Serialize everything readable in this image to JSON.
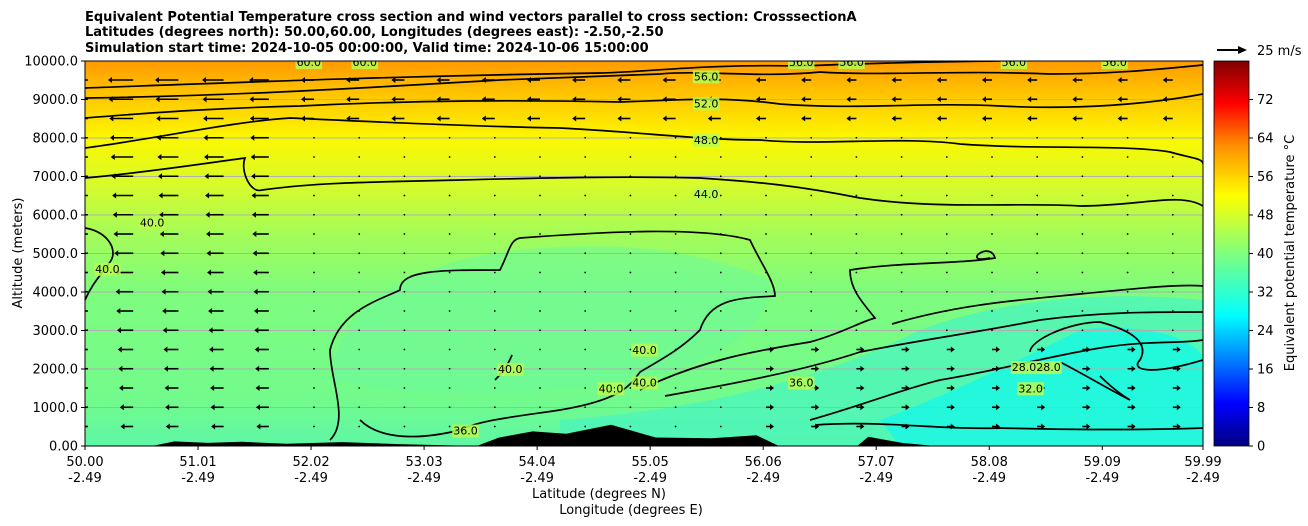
{
  "chart_data": {
    "type": "heatmap",
    "title_lines": [
      "Equivalent Potential Temperature cross section and wind vectors parallel to cross section: CrosssectionA",
      "Latitudes (degrees north): 50.00,60.00, Longitudes (degrees east): -2.50,-2.50",
      "Simulation start time: 2024-10-05 00:00:00, Valid time: 2024-10-06 15:00:00"
    ],
    "ylabel": "Altitude (meters)",
    "xlabel_lines": [
      "Latitude (degrees N)",
      "Longitude (degrees E)"
    ],
    "xlim": [
      50.0,
      59.99
    ],
    "ylim": [
      0,
      10000
    ],
    "x_ticks": [
      {
        "lat": "50.00",
        "lon": "-2.49",
        "value": 50.0
      },
      {
        "lat": "51.01",
        "lon": "-2.49",
        "value": 51.01
      },
      {
        "lat": "52.02",
        "lon": "-2.49",
        "value": 52.02
      },
      {
        "lat": "53.03",
        "lon": "-2.49",
        "value": 53.03
      },
      {
        "lat": "54.04",
        "lon": "-2.49",
        "value": 54.04
      },
      {
        "lat": "55.05",
        "lon": "-2.49",
        "value": 55.05
      },
      {
        "lat": "56.06",
        "lon": "-2.49",
        "value": 56.06
      },
      {
        "lat": "57.07",
        "lon": "-2.49",
        "value": 57.07
      },
      {
        "lat": "58.08",
        "lon": "-2.49",
        "value": 58.08
      },
      {
        "lat": "59.09",
        "lon": "-2.49",
        "value": 59.09
      },
      {
        "lat": "59.99",
        "lon": "-2.49",
        "value": 59.99
      }
    ],
    "y_ticks": [
      {
        "label": "0.00",
        "value": 0
      },
      {
        "label": "1000.0",
        "value": 1000
      },
      {
        "label": "2000.0",
        "value": 2000
      },
      {
        "label": "3000.0",
        "value": 3000
      },
      {
        "label": "4000.0",
        "value": 4000
      },
      {
        "label": "5000.0",
        "value": 5000
      },
      {
        "label": "6000.0",
        "value": 6000
      },
      {
        "label": "7000.0",
        "value": 7000
      },
      {
        "label": "8000.0",
        "value": 8000
      },
      {
        "label": "9000.0",
        "value": 9000
      },
      {
        "label": "10000.0",
        "value": 10000
      }
    ],
    "grid": "horizontal",
    "colorbar": {
      "label": "Equivalent potential temperature °C",
      "range": [
        0,
        80
      ],
      "ticks": [
        "0",
        "8",
        "16",
        "24",
        "32",
        "40",
        "48",
        "56",
        "64",
        "72"
      ],
      "tick_values": [
        0,
        8,
        16,
        24,
        32,
        40,
        48,
        56,
        64,
        72
      ],
      "colormap": "jet"
    },
    "quiver_key": {
      "label": "25 m/s",
      "speed": 25
    },
    "contour_labels": [
      {
        "text": "56.0",
        "lat": 55.55,
        "alt": 9600
      },
      {
        "text": "52.0",
        "lat": 55.55,
        "alt": 8900
      },
      {
        "text": "48.0",
        "lat": 55.55,
        "alt": 7950
      },
      {
        "text": "44.0",
        "lat": 55.55,
        "alt": 6550
      },
      {
        "text": "40.0",
        "lat": 50.6,
        "alt": 5800
      },
      {
        "text": "40.0",
        "lat": 50.2,
        "alt": 4600
      },
      {
        "text": "40.0",
        "lat": 53.8,
        "alt": 2000
      },
      {
        "text": "40.0",
        "lat": 55.0,
        "alt": 2500
      },
      {
        "text": "40:0",
        "lat": 54.7,
        "alt": 1500
      },
      {
        "text": "40.0",
        "lat": 55.0,
        "alt": 1650
      },
      {
        "text": "36.0",
        "lat": 56.4,
        "alt": 1650
      },
      {
        "text": "36.0",
        "lat": 53.4,
        "alt": 400
      },
      {
        "text": "28.028.0",
        "lat": 58.5,
        "alt": 2050
      },
      {
        "text": "32.0",
        "lat": 58.45,
        "alt": 1500
      },
      {
        "text": "60.0",
        "lat": 52.0,
        "alt": 9970
      },
      {
        "text": "60.0",
        "lat": 52.5,
        "alt": 9970
      },
      {
        "text": "56.0",
        "lat": 56.4,
        "alt": 9970
      },
      {
        "text": "56.0",
        "lat": 56.85,
        "alt": 9970
      },
      {
        "text": "56.0",
        "lat": 58.3,
        "alt": 9970
      },
      {
        "text": "56.0",
        "lat": 59.2,
        "alt": 9970
      }
    ],
    "terrain": [
      {
        "lat": 50.6,
        "alt": 0
      },
      {
        "lat": 50.8,
        "alt": 120
      },
      {
        "lat": 51.1,
        "alt": 80
      },
      {
        "lat": 51.4,
        "alt": 110
      },
      {
        "lat": 51.8,
        "alt": 60
      },
      {
        "lat": 52.3,
        "alt": 100
      },
      {
        "lat": 52.8,
        "alt": 50
      },
      {
        "lat": 53.5,
        "alt": 0
      },
      {
        "lat": 53.7,
        "alt": 220
      },
      {
        "lat": 54.0,
        "alt": 380
      },
      {
        "lat": 54.3,
        "alt": 320
      },
      {
        "lat": 54.7,
        "alt": 550
      },
      {
        "lat": 55.1,
        "alt": 220
      },
      {
        "lat": 55.6,
        "alt": 200
      },
      {
        "lat": 56.0,
        "alt": 280
      },
      {
        "lat": 56.2,
        "alt": 0
      },
      {
        "lat": 56.9,
        "alt": 0
      },
      {
        "lat": 57.0,
        "alt": 240
      },
      {
        "lat": 57.3,
        "alt": 80
      },
      {
        "lat": 57.6,
        "alt": 0
      }
    ],
    "series": []
  }
}
